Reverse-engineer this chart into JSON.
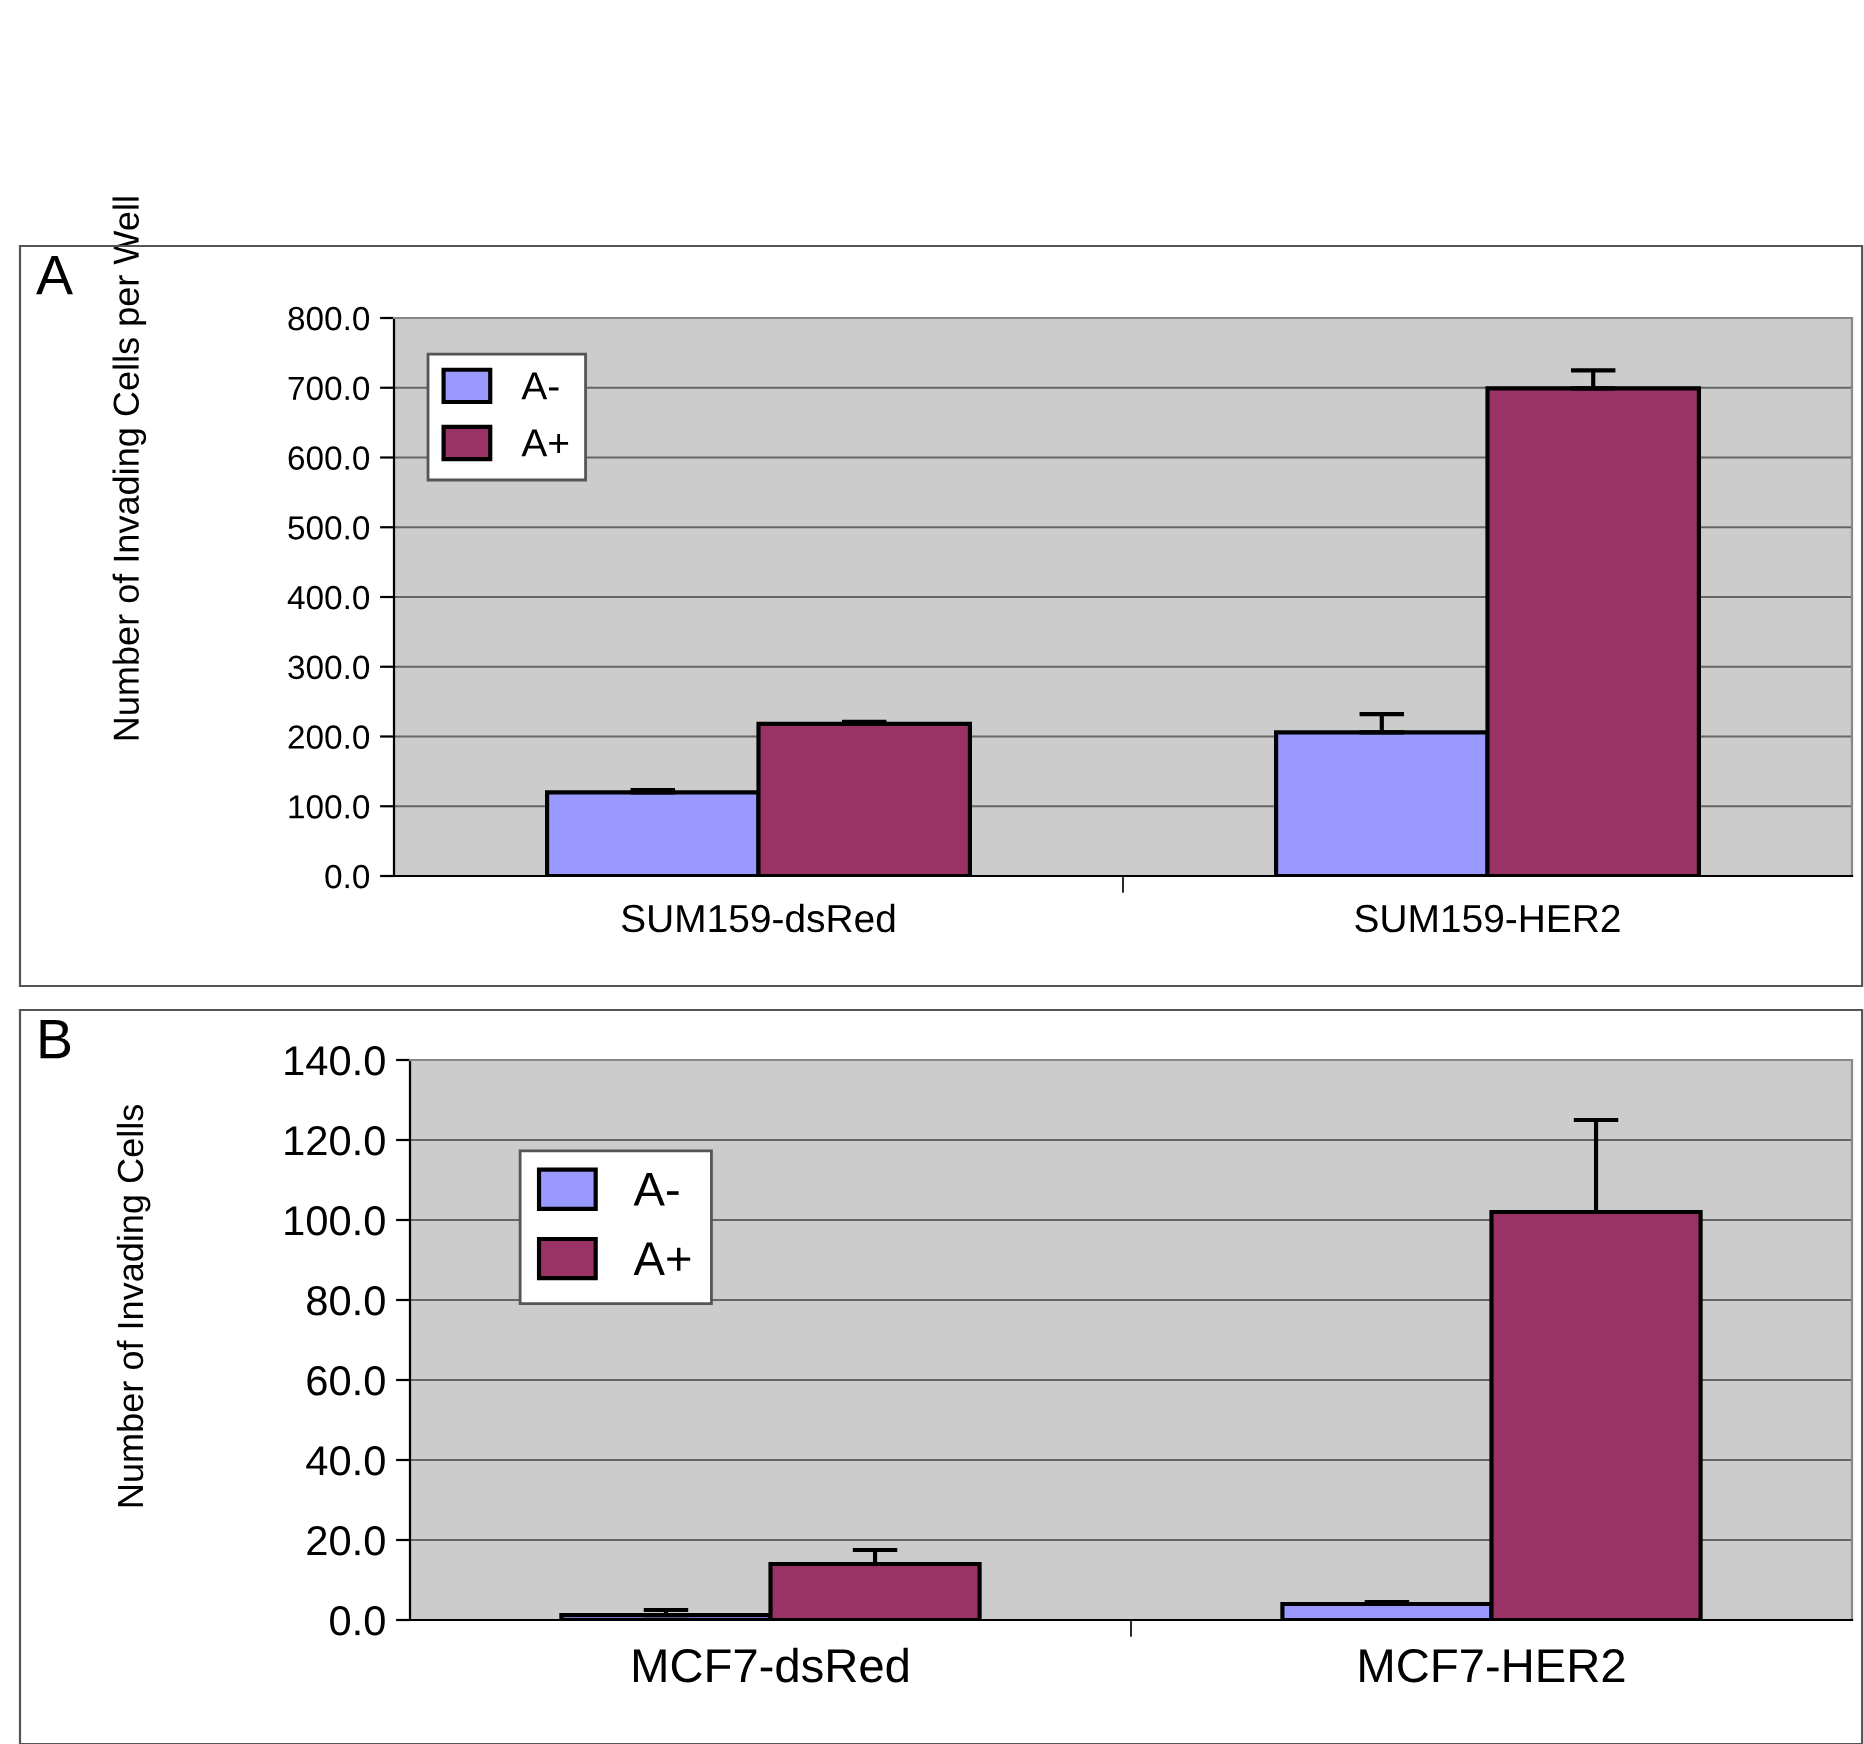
{
  "chart_data": [
    {
      "type": "bar",
      "ylabel": "Number of Invading Cells per Well",
      "annotations": [
        "A"
      ],
      "categories": [
        "SUM159-dsRed",
        "SUM159-HER2"
      ],
      "series": [
        {
          "name": "A-",
          "color": "#9999ff",
          "values": [
            120,
            206
          ],
          "errors": [
            3,
            26
          ]
        },
        {
          "name": "A+",
          "color": "#993366",
          "values": [
            218,
            699
          ],
          "errors": [
            3,
            26
          ]
        }
      ],
      "ylim": [
        0,
        800
      ],
      "yticks": [
        {
          "value": 0,
          "label": "0.0"
        },
        {
          "value": 100,
          "label": "100.0"
        },
        {
          "value": 200,
          "label": "200.0"
        },
        {
          "value": 300,
          "label": "300.0"
        },
        {
          "value": 400,
          "label": "400.0"
        },
        {
          "value": 500,
          "label": "500.0"
        },
        {
          "value": 600,
          "label": "600.0"
        },
        {
          "value": 700,
          "label": "700.0"
        },
        {
          "value": 800,
          "label": "800.0"
        }
      ],
      "grid": "y",
      "legend": "top left"
    },
    {
      "type": "bar",
      "ylabel": "Number of Invading Cells",
      "annotations": [
        "B"
      ],
      "categories": [
        "MCF7-dsRed",
        "MCF7-HER2"
      ],
      "series": [
        {
          "name": "A-",
          "color": "#9999ff",
          "values": [
            1.2,
            4
          ],
          "errors": [
            1.3,
            0.5
          ]
        },
        {
          "name": "A+",
          "color": "#993366",
          "values": [
            14,
            102
          ],
          "errors": [
            3.5,
            23
          ]
        }
      ],
      "ylim": [
        0,
        140
      ],
      "yticks": [
        {
          "value": 0,
          "label": "0.0"
        },
        {
          "value": 20,
          "label": "20.0"
        },
        {
          "value": 40,
          "label": "40.0"
        },
        {
          "value": 60,
          "label": "60.0"
        },
        {
          "value": 80,
          "label": "80.0"
        },
        {
          "value": 100,
          "label": "100.0"
        },
        {
          "value": 120,
          "label": "120.0"
        },
        {
          "value": 140,
          "label": "140.0"
        }
      ],
      "grid": "y",
      "legend": "top left"
    }
  ]
}
